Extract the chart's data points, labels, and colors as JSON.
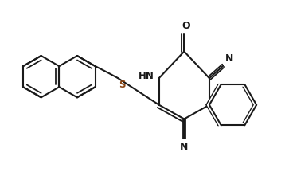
{
  "bg_color": "#ffffff",
  "line_color": "#1a1a1a",
  "label_S": "#8B4513",
  "label_N": "#1a1a1a",
  "label_O": "#1a1a1a",
  "lw": 1.5,
  "figsize": [
    3.58,
    2.16
  ],
  "dpi": 100,
  "xlim": [
    0,
    3.58
  ],
  "ylim": [
    0,
    2.16
  ]
}
